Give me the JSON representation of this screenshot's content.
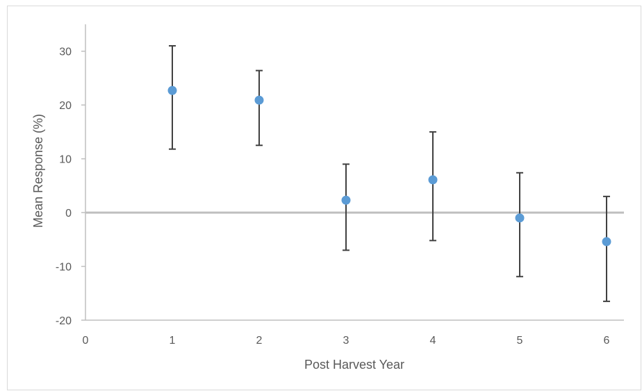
{
  "chart_data": {
    "type": "scatter",
    "title": "",
    "xlabel": "Post Harvest Year",
    "ylabel": "Mean Response (%)",
    "xlim": [
      0,
      6.2
    ],
    "ylim": [
      -20,
      35
    ],
    "x_ticks": [
      0,
      1,
      2,
      3,
      4,
      5,
      6
    ],
    "y_ticks": [
      30,
      20,
      10,
      0,
      -10,
      -20
    ],
    "grid": false,
    "legend": "none",
    "zero_line": true,
    "colors": {
      "point": "#5b9bd5",
      "error_bar": "#404040",
      "axis": "#bfbfbf",
      "zero_line": "#bfbfbf"
    },
    "points": [
      {
        "x": 1,
        "y": 22.7,
        "lower": 11.8,
        "upper": 31.0
      },
      {
        "x": 2,
        "y": 20.9,
        "lower": 12.5,
        "upper": 26.4
      },
      {
        "x": 3,
        "y": 2.3,
        "lower": -7.0,
        "upper": 9.0
      },
      {
        "x": 4,
        "y": 6.1,
        "lower": -5.2,
        "upper": 15.0
      },
      {
        "x": 5,
        "y": -1.0,
        "lower": -11.9,
        "upper": 7.4
      },
      {
        "x": 6,
        "y": -5.4,
        "lower": -16.5,
        "upper": 3.0
      }
    ]
  }
}
